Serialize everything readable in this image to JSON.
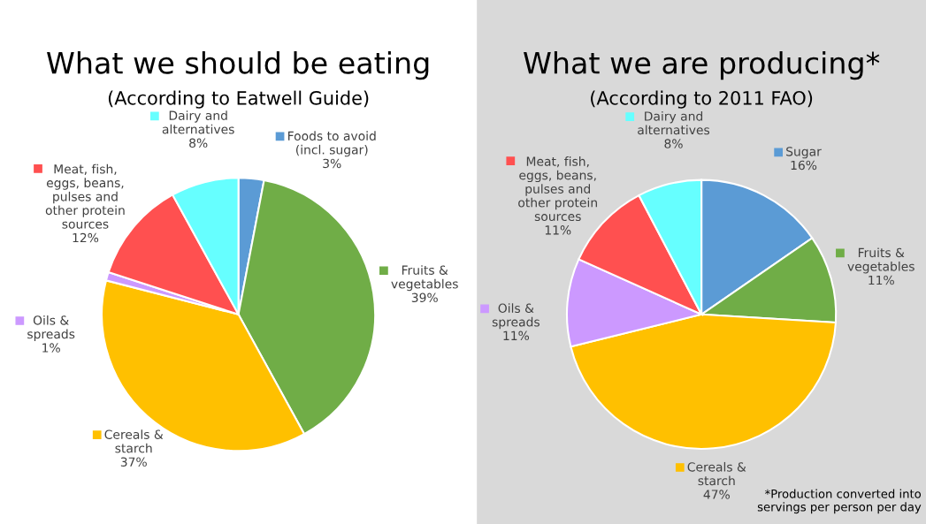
{
  "chart_data": [
    {
      "type": "pie",
      "title": "What we should be eating",
      "subtitle": "(According to Eatwell Guide)",
      "categories": [
        "Foods to avoid\n(incl. sugar)",
        "Fruits &\nvegetables",
        "Cereals &\nstarch",
        "Oils &\nspreads",
        "Meat, fish,\neggs, beans,\npulses and\nother protein\nsources",
        "Dairy and\nalternatives"
      ],
      "values": [
        3,
        39,
        37,
        1,
        12,
        8
      ],
      "value_labels": [
        "3%",
        "39%",
        "37%",
        "1%",
        "12%",
        "8%"
      ],
      "colors": [
        "#5b9bd5",
        "#70ad47",
        "#ffc000",
        "#cc99ff",
        "#ff5050",
        "#66ffff"
      ],
      "legend": "top left"
    },
    {
      "type": "pie",
      "title": "What we are producing*",
      "subtitle": "(According to 2011 FAO)",
      "categories": [
        "Sugar",
        "Fruits &\nvegetables",
        "Cereals &\nstarch",
        "Oils &\nspreads",
        "Meat, fish,\neggs, beans,\npulses and\nother protein\nsources",
        "Dairy and\nalternatives"
      ],
      "values": [
        16,
        11,
        47,
        11,
        11,
        8
      ],
      "value_labels": [
        "16%",
        "11%",
        "47%",
        "11%",
        "11%",
        "8%"
      ],
      "colors": [
        "#5b9bd5",
        "#70ad47",
        "#ffc000",
        "#cc99ff",
        "#ff5050",
        "#66ffff"
      ],
      "legend": "top left",
      "annotations": [
        "*Production converted into\nservings per person per day"
      ]
    }
  ]
}
